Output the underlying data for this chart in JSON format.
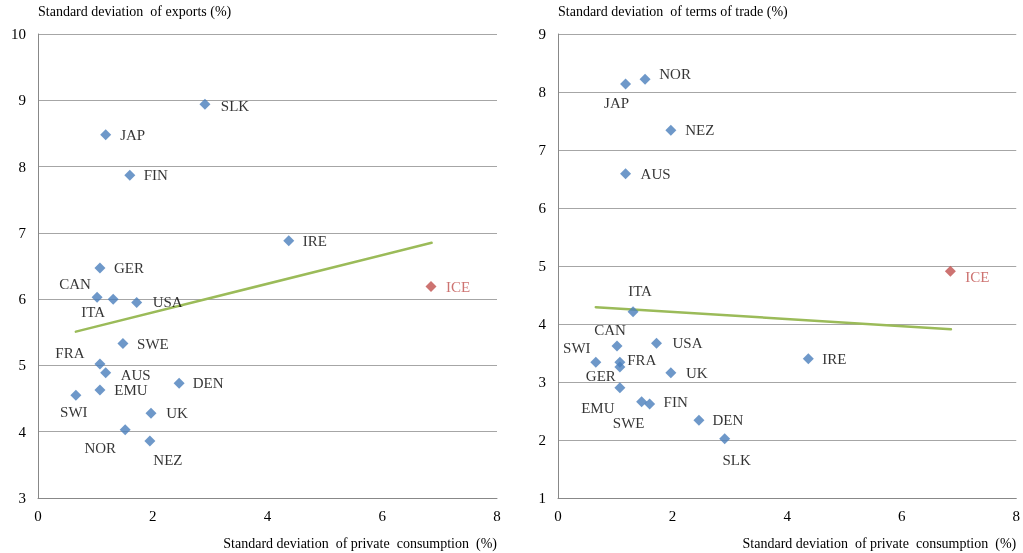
{
  "chart_data": [
    {
      "type": "scatter",
      "ylabel": "Standard deviation  of exports (%)",
      "xlabel": "Standard deviation  of private  consumption  (%)",
      "xlim": [
        0,
        8
      ],
      "xticks": [
        0,
        2,
        4,
        6,
        8
      ],
      "ylim": [
        3,
        10
      ],
      "yticks": [
        3,
        4,
        5,
        6,
        7,
        8,
        9,
        10
      ],
      "grid": "y",
      "series": [
        {
          "marker": "diamond",
          "x": [
            2.91,
            1.18,
            1.6,
            4.37,
            1.08,
            1.03,
            1.31,
            1.72,
            6.85,
            1.48,
            1.08,
            1.18,
            2.46,
            1.08,
            0.66,
            1.97,
            1.52,
            1.95
          ],
          "values": [
            8.94,
            8.48,
            7.87,
            6.88,
            6.47,
            6.03,
            6.0,
            5.95,
            6.19,
            5.33,
            5.02,
            4.89,
            4.73,
            4.63,
            4.55,
            4.28,
            4.03,
            3.86
          ],
          "colors": [
            "#4a7ebb",
            "#4a7ebb",
            "#4a7ebb",
            "#4a7ebb",
            "#4a7ebb",
            "#4a7ebb",
            "#4a7ebb",
            "#4a7ebb",
            "#c0504d",
            "#4a7ebb",
            "#4a7ebb",
            "#4a7ebb",
            "#4a7ebb",
            "#4a7ebb",
            "#4a7ebb",
            "#4a7ebb",
            "#4a7ebb",
            "#4a7ebb"
          ]
        },
        {
          "type": "line",
          "x": [
            0.66,
            6.86
          ],
          "values": [
            5.51,
            6.85
          ],
          "color": "#9bbb59"
        }
      ],
      "annotations": [
        {
          "text": "SLK",
          "x": 2.91,
          "y": 8.94
        },
        {
          "text": "JAP",
          "x": 1.18,
          "y": 8.48
        },
        {
          "text": "FIN",
          "x": 1.6,
          "y": 7.87
        },
        {
          "text": "IRE",
          "x": 4.37,
          "y": 6.88
        },
        {
          "text": "GER",
          "x": 1.08,
          "y": 6.47
        },
        {
          "text": "CAN",
          "x": 1.03,
          "y": 6.03
        },
        {
          "text": "ITA",
          "x": 1.31,
          "y": 6.0
        },
        {
          "text": "USA",
          "x": 1.72,
          "y": 5.95
        },
        {
          "text": "ICE",
          "x": 6.85,
          "y": 6.19
        },
        {
          "text": "SWE",
          "x": 1.48,
          "y": 5.33
        },
        {
          "text": "FRA",
          "x": 1.08,
          "y": 5.02
        },
        {
          "text": "AUS",
          "x": 1.18,
          "y": 4.89
        },
        {
          "text": "DEN",
          "x": 2.46,
          "y": 4.73
        },
        {
          "text": "EMU",
          "x": 1.08,
          "y": 4.63
        },
        {
          "text": "SWI",
          "x": 0.66,
          "y": 4.55
        },
        {
          "text": "UK",
          "x": 1.97,
          "y": 4.28
        },
        {
          "text": "NOR",
          "x": 1.52,
          "y": 4.03
        },
        {
          "text": "NEZ",
          "x": 1.95,
          "y": 3.86
        }
      ]
    },
    {
      "type": "scatter",
      "ylabel": "Standard deviation  of terms of trade (%)",
      "xlabel": "Standard deviation  of private  consumption  (%)",
      "xlim": [
        0,
        8
      ],
      "xticks": [
        0,
        2,
        4,
        6,
        8
      ],
      "ylim": [
        1,
        9
      ],
      "yticks": [
        1,
        2,
        3,
        4,
        5,
        6,
        7,
        8,
        9
      ],
      "grid": "y",
      "series": [
        {
          "marker": "diamond",
          "x": [
            1.18,
            1.52,
            1.97,
            1.18,
            6.85,
            1.31,
            1.03,
            1.72,
            0.66,
            1.08,
            1.08,
            4.37,
            1.97,
            1.08,
            1.46,
            1.6,
            2.46,
            2.91
          ],
          "values": [
            8.14,
            8.22,
            7.34,
            6.59,
            4.91,
            4.21,
            3.62,
            3.67,
            3.34,
            3.34,
            3.26,
            3.4,
            3.16,
            2.9,
            2.66,
            2.62,
            2.34,
            2.02
          ],
          "colors": [
            "#4a7ebb",
            "#4a7ebb",
            "#4a7ebb",
            "#4a7ebb",
            "#c0504d",
            "#4a7ebb",
            "#4a7ebb",
            "#4a7ebb",
            "#4a7ebb",
            "#4a7ebb",
            "#4a7ebb",
            "#4a7ebb",
            "#4a7ebb",
            "#4a7ebb",
            "#4a7ebb",
            "#4a7ebb",
            "#4a7ebb",
            "#4a7ebb"
          ]
        },
        {
          "type": "line",
          "x": [
            0.66,
            6.86
          ],
          "values": [
            4.29,
            3.91
          ],
          "color": "#9bbb59"
        }
      ],
      "annotations": [
        {
          "text": "JAP",
          "x": 1.18,
          "y": 8.14
        },
        {
          "text": "NOR",
          "x": 1.52,
          "y": 8.22
        },
        {
          "text": "NEZ",
          "x": 1.97,
          "y": 7.34
        },
        {
          "text": "AUS",
          "x": 1.18,
          "y": 6.59
        },
        {
          "text": "ICE",
          "x": 6.85,
          "y": 4.91
        },
        {
          "text": "ITA",
          "x": 1.31,
          "y": 4.21
        },
        {
          "text": "CAN",
          "x": 1.03,
          "y": 3.62
        },
        {
          "text": "USA",
          "x": 1.72,
          "y": 3.67
        },
        {
          "text": "SWI",
          "x": 0.66,
          "y": 3.34
        },
        {
          "text": "FRA",
          "x": 1.08,
          "y": 3.34
        },
        {
          "text": "GER",
          "x": 1.08,
          "y": 3.26
        },
        {
          "text": "IRE",
          "x": 4.37,
          "y": 3.4
        },
        {
          "text": "UK",
          "x": 1.97,
          "y": 3.16
        },
        {
          "text": "EMU",
          "x": 1.08,
          "y": 2.9
        },
        {
          "text": "SWE",
          "x": 1.46,
          "y": 2.66
        },
        {
          "text": "FIN",
          "x": 1.6,
          "y": 2.62
        },
        {
          "text": "DEN",
          "x": 2.46,
          "y": 2.34
        },
        {
          "text": "SLK",
          "x": 2.91,
          "y": 2.02
        }
      ]
    }
  ]
}
